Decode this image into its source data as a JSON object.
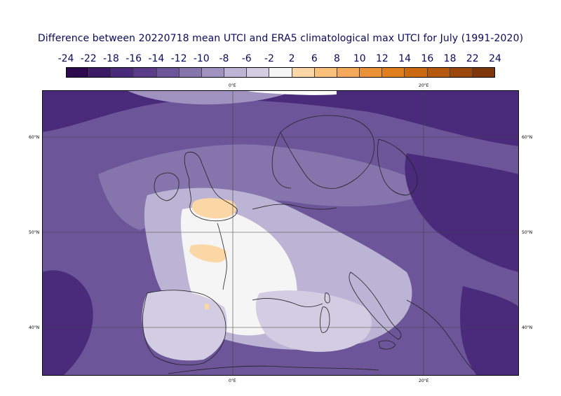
{
  "title": "Difference between 20220718 mean UTCI and ERA5 climatological max UTCI for July (1991-2020)",
  "colorbar": {
    "labels": [
      "-24",
      "-22",
      "-18",
      "-16",
      "-14",
      "-12",
      "-10",
      "-8",
      "-6",
      "-2",
      "2",
      "6",
      "8",
      "10",
      "12",
      "14",
      "16",
      "18",
      "22",
      "24"
    ],
    "colors": [
      "#2d0a4e",
      "#3d1a66",
      "#4a2a7a",
      "#5a3c8a",
      "#6d559a",
      "#8575ac",
      "#a092c0",
      "#bbb4d4",
      "#d2cde3",
      "#f5f5f5",
      "#fbd7a6",
      "#f9c07c",
      "#f4a85a",
      "#eb9139",
      "#e07e1d",
      "#cc6a14",
      "#b4580f",
      "#9c470c",
      "#7f360a"
    ]
  },
  "axes": {
    "top_ticks": [
      "0°E",
      "20°E"
    ],
    "bottom_ticks": [
      "0°E",
      "20°E"
    ],
    "left_ticks": [
      "60°N",
      "50°N",
      "40°N"
    ],
    "right_ticks": [
      "60°N",
      "50°N",
      "40°N"
    ]
  },
  "map": {
    "lon_range": [
      -20,
      30
    ],
    "lat_range": [
      35,
      65
    ],
    "gridlines_lon": [
      0,
      20
    ],
    "gridlines_lat": [
      40,
      50,
      60
    ]
  }
}
